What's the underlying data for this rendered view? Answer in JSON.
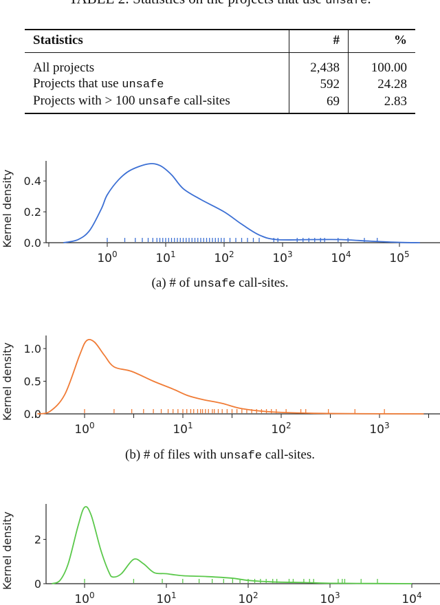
{
  "table": {
    "caption_prefix": "TABLE 2: Statistics on the projects that use ",
    "caption_code": "unsafe",
    "caption_suffix": ".",
    "headers": [
      "Statistics",
      "#",
      "%"
    ],
    "rows": [
      {
        "pre": "All projects",
        "code": "",
        "post": "",
        "count": "2,438",
        "pct": "100.00"
      },
      {
        "pre": "Projects that use ",
        "code": "unsafe",
        "post": "",
        "count": "592",
        "pct": "24.28"
      },
      {
        "pre": "Projects with > 100 ",
        "code": "unsafe",
        "post": " call-sites",
        "count": "69",
        "pct": "2.83"
      }
    ]
  },
  "captions": {
    "a_pre": "(a) # of ",
    "a_code": "unsafe",
    "a_post": " call-sites.",
    "b_pre": "(b) # of files with ",
    "b_code": "unsafe",
    "b_post": " call-sites."
  },
  "chart_data": [
    {
      "type": "line",
      "subtype": "kde-with-rug",
      "color": "#3b6fd4",
      "ylabel": "Kernel density",
      "xscale": "log",
      "xlim_log10": [
        -1.2,
        5.6
      ],
      "ylim": [
        0,
        0.53
      ],
      "yticks": [
        0.0,
        0.2,
        0.4
      ],
      "ytick_labels": [
        "0.0",
        "0.2",
        "0.4"
      ],
      "xticks_log10": [
        -1,
        0,
        1,
        2,
        3,
        4,
        5
      ],
      "xtick_labels": [
        "",
        "10^0",
        "10^1",
        "10^2",
        "10^3",
        "10^4",
        "10^5"
      ],
      "curve": [
        [
          -0.75,
          0
        ],
        [
          -0.5,
          0.02
        ],
        [
          -0.3,
          0.08
        ],
        [
          -0.1,
          0.22
        ],
        [
          0,
          0.31
        ],
        [
          0.2,
          0.41
        ],
        [
          0.4,
          0.47
        ],
        [
          0.7,
          0.51
        ],
        [
          0.9,
          0.5
        ],
        [
          1.1,
          0.44
        ],
        [
          1.3,
          0.35
        ],
        [
          1.6,
          0.28
        ],
        [
          2.0,
          0.2
        ],
        [
          2.3,
          0.12
        ],
        [
          2.6,
          0.05
        ],
        [
          2.9,
          0.02
        ],
        [
          3.5,
          0.02
        ],
        [
          4.0,
          0.02
        ],
        [
          4.5,
          0.01
        ],
        [
          5.0,
          0.002
        ],
        [
          5.35,
          0
        ]
      ],
      "rug_log10": [
        0,
        0.3,
        0.48,
        0.6,
        0.7,
        0.78,
        0.85,
        0.9,
        0.95,
        1.0,
        1.05,
        1.1,
        1.15,
        1.2,
        1.25,
        1.3,
        1.35,
        1.4,
        1.45,
        1.5,
        1.55,
        1.6,
        1.65,
        1.7,
        1.75,
        1.8,
        1.85,
        1.9,
        1.95,
        2.0,
        2.1,
        2.2,
        2.3,
        2.4,
        2.5,
        2.6,
        2.85,
        2.92,
        3.25,
        3.35,
        3.45,
        3.55,
        3.65,
        3.72,
        3.95,
        4.12,
        4.4,
        4.62
      ]
    },
    {
      "type": "line",
      "subtype": "kde-with-rug",
      "color": "#f07b35",
      "ylabel": "Kernel density",
      "xscale": "log",
      "xlim_log10": [
        -0.78,
        3.55
      ],
      "ylim": [
        0,
        1.2
      ],
      "yticks": [
        0.0,
        0.5,
        1.0
      ],
      "ytick_labels": [
        "0.0",
        "0.5",
        "1.0"
      ],
      "xticks_log10": [
        -0.5,
        0,
        0.5,
        1,
        1.5,
        2,
        2.5,
        3,
        3.5
      ],
      "xtick_labels": [
        "",
        "10^0",
        "",
        "10^1",
        "",
        "10^2",
        "",
        "10^3",
        ""
      ],
      "curve": [
        [
          -0.48,
          0
        ],
        [
          -0.35,
          0.04
        ],
        [
          -0.2,
          0.3
        ],
        [
          -0.05,
          0.9
        ],
        [
          0.02,
          1.12
        ],
        [
          0.1,
          1.1
        ],
        [
          0.2,
          0.9
        ],
        [
          0.3,
          0.72
        ],
        [
          0.48,
          0.65
        ],
        [
          0.7,
          0.5
        ],
        [
          0.9,
          0.38
        ],
        [
          1.05,
          0.28
        ],
        [
          1.2,
          0.22
        ],
        [
          1.4,
          0.16
        ],
        [
          1.6,
          0.08
        ],
        [
          1.9,
          0.03
        ],
        [
          2.3,
          0.01
        ],
        [
          2.8,
          0.003
        ],
        [
          3.45,
          0
        ]
      ],
      "rug_log10": [
        0,
        0.3,
        0.48,
        0.6,
        0.7,
        0.78,
        0.85,
        0.9,
        0.95,
        1.0,
        1.04,
        1.08,
        1.11,
        1.15,
        1.18,
        1.2,
        1.23,
        1.26,
        1.3,
        1.32,
        1.36,
        1.4,
        1.45,
        1.5,
        1.55,
        1.6,
        1.65,
        1.7,
        1.75,
        1.8,
        1.85,
        1.9,
        1.95,
        2.05,
        2.2,
        2.25,
        2.48,
        2.75,
        3.05
      ]
    },
    {
      "type": "line",
      "subtype": "kde-with-rug",
      "color": "#5ac84a",
      "ylabel": "Kernel density",
      "xscale": "log",
      "xlim_log10": [
        -0.6,
        4.25
      ],
      "ylim": [
        0,
        3.6
      ],
      "yticks": [
        0,
        2
      ],
      "ytick_labels": [
        "0",
        "2"
      ],
      "xticks_log10": [
        0,
        1,
        2,
        3,
        4
      ],
      "xtick_labels": [
        "10^0",
        "10^1",
        "10^2",
        "10^3",
        "10^4"
      ],
      "curve": [
        [
          -0.4,
          0
        ],
        [
          -0.3,
          0.15
        ],
        [
          -0.2,
          0.9
        ],
        [
          -0.08,
          2.6
        ],
        [
          0,
          3.45
        ],
        [
          0.08,
          3.1
        ],
        [
          0.2,
          1.5
        ],
        [
          0.3,
          0.5
        ],
        [
          0.35,
          0.3
        ],
        [
          0.45,
          0.45
        ],
        [
          0.6,
          1.1
        ],
        [
          0.72,
          0.9
        ],
        [
          0.85,
          0.5
        ],
        [
          1.0,
          0.45
        ],
        [
          1.2,
          0.36
        ],
        [
          1.5,
          0.32
        ],
        [
          1.8,
          0.25
        ],
        [
          2.0,
          0.15
        ],
        [
          2.3,
          0.08
        ],
        [
          2.7,
          0.05
        ],
        [
          3.0,
          0.02
        ],
        [
          3.5,
          0.01
        ],
        [
          4.0,
          0
        ]
      ],
      "rug_log10": [
        0,
        0.6,
        0.95,
        1.2,
        1.4,
        1.56,
        1.7,
        1.81,
        1.9,
        2.0,
        2.08,
        2.15,
        2.22,
        2.3,
        2.35,
        2.5,
        2.55,
        2.68,
        2.75,
        2.8,
        3.1,
        3.15,
        3.18,
        3.38,
        3.58
      ]
    }
  ]
}
